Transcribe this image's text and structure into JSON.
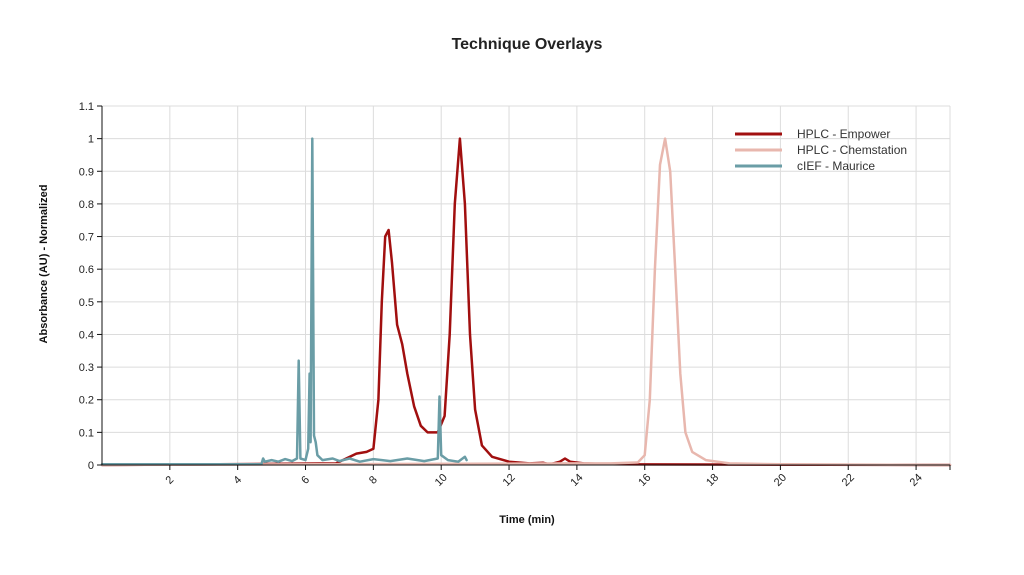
{
  "chart_data": {
    "type": "line",
    "title": "Technique Overlays",
    "xlabel": "Time (min)",
    "ylabel": "Absorbance (AU) - Normalized",
    "xlim": [
      0,
      25
    ],
    "ylim": [
      0,
      1.1
    ],
    "x_ticks": [
      2,
      4,
      6,
      8,
      10,
      12,
      14,
      16,
      18,
      20,
      22,
      24
    ],
    "y_ticks": [
      0,
      0.1,
      0.2,
      0.3,
      0.4,
      0.5,
      0.6,
      0.7,
      0.8,
      0.9,
      1,
      1.1
    ],
    "grid": true,
    "legend_position": "top-right",
    "series": [
      {
        "name": "HPLC - Empower",
        "color": "#a10f0f",
        "points": [
          [
            0,
            0
          ],
          [
            6.9,
            0.005
          ],
          [
            7.2,
            0.02
          ],
          [
            7.5,
            0.035
          ],
          [
            7.8,
            0.04
          ],
          [
            8.0,
            0.05
          ],
          [
            8.15,
            0.2
          ],
          [
            8.25,
            0.5
          ],
          [
            8.35,
            0.7
          ],
          [
            8.45,
            0.72
          ],
          [
            8.55,
            0.62
          ],
          [
            8.7,
            0.43
          ],
          [
            8.85,
            0.37
          ],
          [
            9.0,
            0.28
          ],
          [
            9.2,
            0.18
          ],
          [
            9.4,
            0.12
          ],
          [
            9.6,
            0.1
          ],
          [
            9.9,
            0.1
          ],
          [
            10.1,
            0.15
          ],
          [
            10.25,
            0.4
          ],
          [
            10.4,
            0.8
          ],
          [
            10.55,
            1.0
          ],
          [
            10.7,
            0.8
          ],
          [
            10.85,
            0.4
          ],
          [
            11.0,
            0.17
          ],
          [
            11.2,
            0.06
          ],
          [
            11.5,
            0.025
          ],
          [
            12.0,
            0.01
          ],
          [
            12.6,
            0.005
          ],
          [
            13.0,
            0.007
          ],
          [
            13.2,
            0.002
          ],
          [
            13.5,
            0.01
          ],
          [
            13.65,
            0.02
          ],
          [
            13.8,
            0.01
          ],
          [
            14.2,
            0.005
          ],
          [
            15.0,
            0.002
          ],
          [
            25,
            0
          ]
        ]
      },
      {
        "name": "HPLC - Chemstation",
        "color": "#e8b7ae",
        "points": [
          [
            0,
            0
          ],
          [
            14.0,
            0.005
          ],
          [
            15.0,
            0.005
          ],
          [
            15.8,
            0.008
          ],
          [
            16.0,
            0.03
          ],
          [
            16.15,
            0.2
          ],
          [
            16.3,
            0.6
          ],
          [
            16.45,
            0.92
          ],
          [
            16.6,
            1.0
          ],
          [
            16.75,
            0.9
          ],
          [
            16.9,
            0.6
          ],
          [
            17.05,
            0.28
          ],
          [
            17.2,
            0.1
          ],
          [
            17.4,
            0.04
          ],
          [
            17.8,
            0.015
          ],
          [
            18.5,
            0.005
          ],
          [
            20.0,
            0.002
          ],
          [
            25,
            0
          ]
        ]
      },
      {
        "name": "cIEF - Maurice",
        "color": "#6a9da6",
        "points": [
          [
            0,
            0.002
          ],
          [
            4.7,
            0.002
          ],
          [
            4.75,
            0.02
          ],
          [
            4.8,
            0.01
          ],
          [
            5.0,
            0.015
          ],
          [
            5.2,
            0.01
          ],
          [
            5.4,
            0.018
          ],
          [
            5.6,
            0.012
          ],
          [
            5.75,
            0.02
          ],
          [
            5.8,
            0.32
          ],
          [
            5.85,
            0.02
          ],
          [
            6.0,
            0.015
          ],
          [
            6.08,
            0.05
          ],
          [
            6.12,
            0.28
          ],
          [
            6.15,
            0.07
          ],
          [
            6.2,
            1.0
          ],
          [
            6.25,
            0.09
          ],
          [
            6.3,
            0.07
          ],
          [
            6.35,
            0.03
          ],
          [
            6.5,
            0.015
          ],
          [
            6.8,
            0.02
          ],
          [
            7.0,
            0.012
          ],
          [
            7.3,
            0.02
          ],
          [
            7.6,
            0.01
          ],
          [
            8.0,
            0.018
          ],
          [
            8.5,
            0.012
          ],
          [
            9.0,
            0.02
          ],
          [
            9.5,
            0.012
          ],
          [
            9.9,
            0.02
          ],
          [
            9.95,
            0.21
          ],
          [
            10.0,
            0.03
          ],
          [
            10.2,
            0.015
          ],
          [
            10.5,
            0.01
          ],
          [
            10.7,
            0.025
          ],
          [
            10.75,
            0.015
          ]
        ]
      }
    ]
  }
}
